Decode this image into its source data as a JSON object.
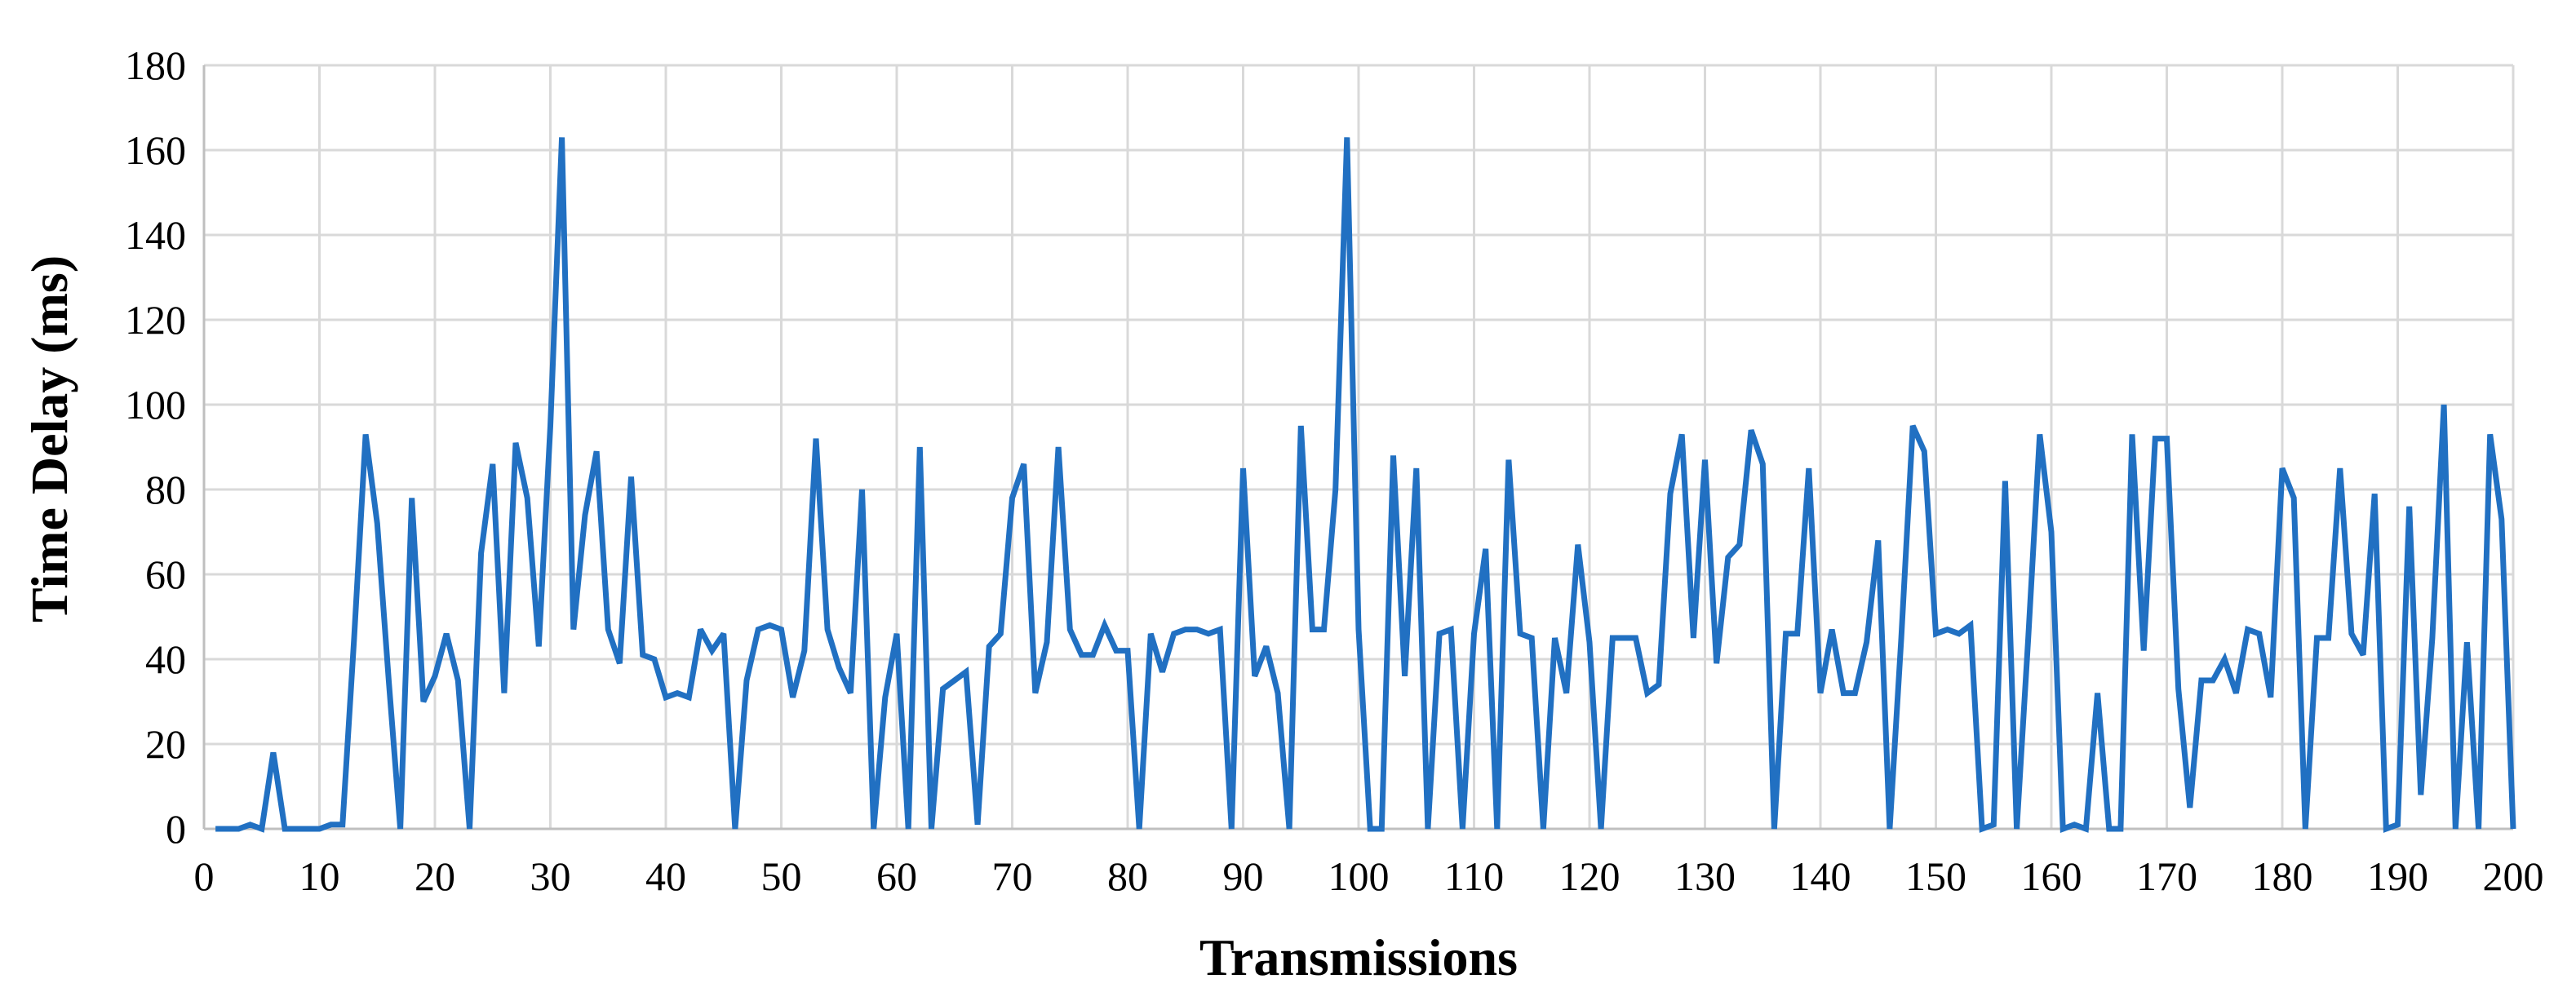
{
  "chart_data": {
    "type": "line",
    "title": "",
    "xlabel": "Transmissions",
    "ylabel": "Time Delay (ms)",
    "xlim": [
      0,
      200
    ],
    "ylim": [
      0,
      180
    ],
    "x_ticks": [
      0,
      10,
      20,
      30,
      40,
      50,
      60,
      70,
      80,
      90,
      100,
      110,
      120,
      130,
      140,
      150,
      160,
      170,
      180,
      190,
      200
    ],
    "y_ticks": [
      0,
      20,
      40,
      60,
      80,
      100,
      120,
      140,
      160,
      180
    ],
    "grid": true,
    "legend": "none",
    "series": [
      {
        "color": "#2170c2",
        "x": [
          1,
          2,
          3,
          4,
          5,
          6,
          7,
          8,
          9,
          10,
          11,
          12,
          13,
          14,
          15,
          16,
          17,
          18,
          19,
          20,
          21,
          22,
          23,
          24,
          25,
          26,
          27,
          28,
          29,
          30,
          31,
          32,
          33,
          34,
          35,
          36,
          37,
          38,
          39,
          40,
          41,
          42,
          43,
          44,
          45,
          46,
          47,
          48,
          49,
          50,
          51,
          52,
          53,
          54,
          55,
          56,
          57,
          58,
          59,
          60,
          61,
          62,
          63,
          64,
          65,
          66,
          67,
          68,
          69,
          70,
          71,
          72,
          73,
          74,
          75,
          76,
          77,
          78,
          79,
          80,
          81,
          82,
          83,
          84,
          85,
          86,
          87,
          88,
          89,
          90,
          91,
          92,
          93,
          94,
          95,
          96,
          97,
          98,
          99,
          100,
          101,
          102,
          103,
          104,
          105,
          106,
          107,
          108,
          109,
          110,
          111,
          112,
          113,
          114,
          115,
          116,
          117,
          118,
          119,
          120,
          121,
          122,
          123,
          124,
          125,
          126,
          127,
          128,
          129,
          130,
          131,
          132,
          133,
          134,
          135,
          136,
          137,
          138,
          139,
          140,
          141,
          142,
          143,
          144,
          145,
          146,
          147,
          148,
          149,
          150,
          151,
          152,
          153,
          154,
          155,
          156,
          157,
          158,
          159,
          160,
          161,
          162,
          163,
          164,
          165,
          166,
          167,
          168,
          169,
          170,
          171,
          172,
          173,
          174,
          175,
          176,
          177,
          178,
          179,
          180,
          181,
          182,
          183,
          184,
          185,
          186,
          187,
          188,
          189,
          190,
          191,
          192,
          193,
          194,
          195,
          196,
          197,
          198,
          199,
          200
        ],
        "y": [
          0,
          0,
          0,
          1,
          0,
          18,
          0,
          0,
          0,
          0,
          1,
          1,
          45,
          93,
          72,
          35,
          0,
          78,
          30,
          36,
          46,
          35,
          0,
          65,
          86,
          32,
          91,
          78,
          43,
          95,
          163,
          47,
          74,
          89,
          47,
          39,
          83,
          41,
          40,
          31,
          32,
          31,
          47,
          42,
          46,
          0,
          35,
          47,
          48,
          47,
          31,
          42,
          92,
          47,
          38,
          32,
          80,
          0,
          31,
          46,
          0,
          90,
          0,
          33,
          35,
          37,
          1,
          43,
          46,
          78,
          86,
          32,
          44,
          90,
          47,
          41,
          41,
          48,
          42,
          42,
          0,
          46,
          37,
          46,
          47,
          47,
          46,
          47,
          0,
          85,
          36,
          43,
          32,
          0,
          95,
          47,
          47,
          80,
          163,
          47,
          0,
          0,
          88,
          36,
          85,
          0,
          46,
          47,
          0,
          46,
          66,
          0,
          87,
          46,
          45,
          0,
          45,
          32,
          67,
          44,
          0,
          45,
          45,
          45,
          32,
          34,
          79,
          93,
          45,
          87,
          39,
          64,
          67,
          94,
          86,
          0,
          46,
          46,
          85,
          32,
          47,
          32,
          32,
          44,
          68,
          0,
          45,
          95,
          89,
          46,
          47,
          46,
          48,
          0,
          1,
          82,
          0,
          45,
          93,
          70,
          0,
          1,
          0,
          32,
          0,
          0,
          93,
          42,
          92,
          92,
          33,
          5,
          35,
          35,
          40,
          32,
          47,
          46,
          31,
          85,
          78,
          0,
          45,
          45,
          85,
          46,
          41,
          79,
          0,
          1,
          76,
          8,
          45,
          100,
          0,
          44,
          0,
          93,
          73,
          0
        ]
      }
    ]
  }
}
